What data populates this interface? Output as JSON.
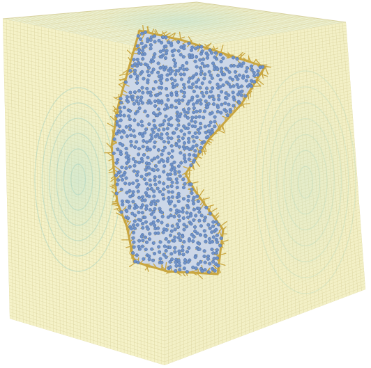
{
  "scene": {
    "subject": "simulation-box-with-molecular-membrane-sheet",
    "colors": {
      "background": "#ffffff",
      "box_face_left": "#f5f2c8",
      "box_face_right": "#f3f0c6",
      "box_face_top": "#eef3d6",
      "grid_line": "#dcd6a2",
      "vortex_tint": "#bfe3d3",
      "vortex_line": "#a9d6c4",
      "bead_fill": "#6f92c7",
      "bead_stroke": "#4d6fa6",
      "tail_color": "#c9a640"
    }
  }
}
